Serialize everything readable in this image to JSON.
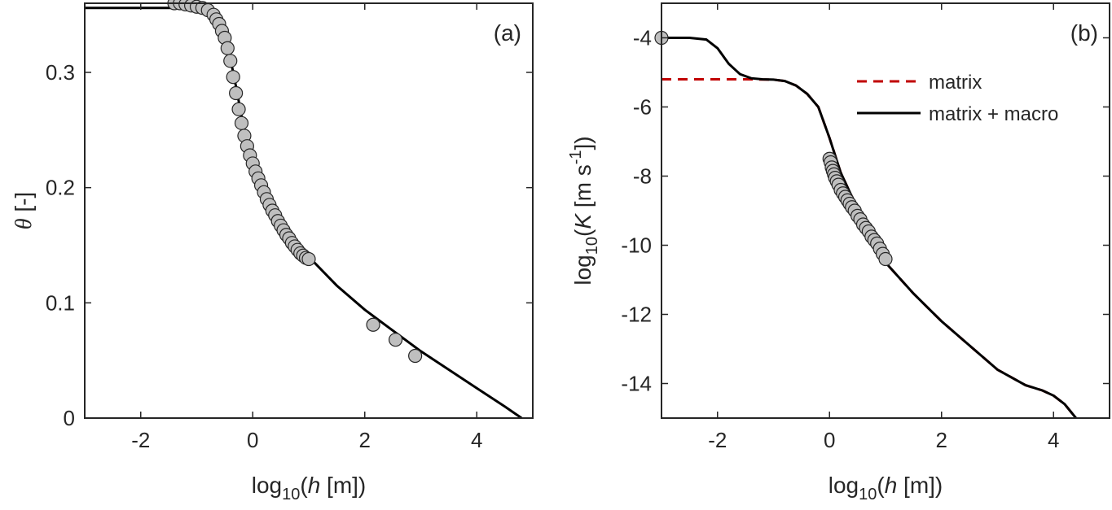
{
  "chart_data": [
    {
      "type": "scatter",
      "panel_label": "(a)",
      "xlabel": {
        "pre": "log",
        "sub": "10",
        "open": "(",
        "var": "h",
        "unit": " [m])"
      },
      "ylabel": {
        "var": "θ",
        "unit": " [-]"
      },
      "xlim": [
        -3,
        5
      ],
      "ylim": [
        0,
        0.36
      ],
      "xticks": [
        -2,
        0,
        2,
        4
      ],
      "xtick_labels": [
        "-2",
        "0",
        "2",
        "4"
      ],
      "yticks": [
        0,
        0.1,
        0.2,
        0.3
      ],
      "ytick_labels": [
        "0",
        "0.1",
        "0.2",
        "0.3"
      ],
      "grid": false,
      "series": [
        {
          "kind": "line",
          "x": [
            -3.0,
            -1.4,
            -1.0,
            -0.8,
            -0.6,
            -0.5,
            -0.4,
            -0.3,
            -0.2,
            -0.1,
            0.0,
            0.1,
            0.2,
            0.4,
            0.6,
            0.8,
            1.0,
            1.5,
            2.0,
            2.5,
            3.0,
            3.5,
            4.0,
            4.5,
            4.8
          ],
          "y": [
            0.356,
            0.356,
            0.354,
            0.35,
            0.34,
            0.33,
            0.312,
            0.288,
            0.262,
            0.24,
            0.224,
            0.21,
            0.198,
            0.18,
            0.165,
            0.152,
            0.14,
            0.115,
            0.094,
            0.076,
            0.058,
            0.042,
            0.026,
            0.01,
            0.0
          ],
          "color": "#000000"
        },
        {
          "kind": "points",
          "x": [
            -1.4,
            -1.3,
            -1.2,
            -1.1,
            -1.0,
            -0.9,
            -0.8,
            -0.7,
            -0.65,
            -0.6,
            -0.55,
            -0.5,
            -0.45,
            -0.4,
            -0.35,
            -0.3,
            -0.25,
            -0.2,
            -0.15,
            -0.1,
            -0.05,
            0.0,
            0.05,
            0.1,
            0.15,
            0.2,
            0.25,
            0.3,
            0.35,
            0.4,
            0.45,
            0.5,
            0.55,
            0.6,
            0.65,
            0.7,
            0.75,
            0.8,
            0.85,
            0.9,
            0.95,
            1.0,
            2.15,
            2.55,
            2.9
          ],
          "y": [
            0.36,
            0.36,
            0.359,
            0.358,
            0.357,
            0.356,
            0.354,
            0.35,
            0.346,
            0.342,
            0.336,
            0.33,
            0.321,
            0.31,
            0.296,
            0.282,
            0.268,
            0.256,
            0.245,
            0.236,
            0.228,
            0.221,
            0.214,
            0.208,
            0.202,
            0.196,
            0.19,
            0.185,
            0.18,
            0.176,
            0.171,
            0.167,
            0.163,
            0.159,
            0.156,
            0.152,
            0.149,
            0.146,
            0.143,
            0.141,
            0.139,
            0.138,
            0.081,
            0.068,
            0.054
          ],
          "color": "#bfbfbf"
        }
      ]
    },
    {
      "type": "line",
      "panel_label": "(b)",
      "xlabel": {
        "pre": "log",
        "sub": "10",
        "open": "(",
        "var": "h",
        "unit": " [m])"
      },
      "ylabel": {
        "pre": "log",
        "sub": "10",
        "open": "(",
        "var": "K",
        "unit": " [m s",
        "sup": "-1",
        "close": "])"
      },
      "xlim": [
        -3,
        5
      ],
      "ylim": [
        -15,
        -3
      ],
      "xticks": [
        -2,
        0,
        2,
        4
      ],
      "xtick_labels": [
        "-2",
        "0",
        "2",
        "4"
      ],
      "yticks": [
        -14,
        -12,
        -10,
        -8,
        -6,
        -4
      ],
      "ytick_labels": [
        "-14",
        "-12",
        "-10",
        "-8",
        "-6",
        "-4"
      ],
      "grid": false,
      "legend": {
        "placement": "top-right"
      },
      "series": [
        {
          "name": "matrix",
          "kind": "line",
          "style": "dashed",
          "x": [
            -3.0,
            -2.0,
            -1.5,
            -1.0,
            -0.8,
            -0.6,
            -0.4,
            -0.2,
            0.0,
            0.2,
            0.4,
            0.6,
            0.8,
            1.0,
            1.5,
            2.0,
            2.5,
            3.0,
            3.5,
            3.8,
            4.0,
            4.2,
            4.4
          ],
          "y": [
            -5.2,
            -5.2,
            -5.2,
            -5.21,
            -5.25,
            -5.38,
            -5.62,
            -6.0,
            -6.9,
            -7.9,
            -8.6,
            -9.3,
            -9.9,
            -10.5,
            -11.4,
            -12.2,
            -12.9,
            -13.6,
            -14.05,
            -14.2,
            -14.35,
            -14.6,
            -15.0
          ],
          "color": "#c00000"
        },
        {
          "name": "matrix + macro",
          "kind": "line",
          "style": "solid",
          "x": [
            -3.0,
            -2.5,
            -2.2,
            -2.0,
            -1.8,
            -1.6,
            -1.4,
            -1.2,
            -1.0,
            -0.8,
            -0.6,
            -0.4,
            -0.2,
            0.0,
            0.2,
            0.4,
            0.6,
            0.8,
            1.0,
            1.5,
            2.0,
            2.5,
            3.0,
            3.5,
            3.8,
            4.0,
            4.2,
            4.4
          ],
          "y": [
            -4.0,
            -4.0,
            -4.05,
            -4.3,
            -4.75,
            -5.05,
            -5.17,
            -5.2,
            -5.21,
            -5.25,
            -5.38,
            -5.62,
            -6.0,
            -6.9,
            -7.9,
            -8.6,
            -9.3,
            -9.9,
            -10.5,
            -11.4,
            -12.2,
            -12.9,
            -13.6,
            -14.05,
            -14.2,
            -14.35,
            -14.6,
            -15.0
          ],
          "color": "#000000"
        },
        {
          "kind": "points",
          "x": [
            -3.0,
            0.0,
            0.02,
            0.04,
            0.06,
            0.08,
            0.1,
            0.13,
            0.16,
            0.2,
            0.24,
            0.28,
            0.32,
            0.36,
            0.4,
            0.45,
            0.5,
            0.55,
            0.6,
            0.65,
            0.7,
            0.75,
            0.8,
            0.85,
            0.9,
            0.95,
            1.0
          ],
          "y": [
            -4.0,
            -7.5,
            -7.6,
            -7.75,
            -7.85,
            -7.95,
            -8.05,
            -8.15,
            -8.25,
            -8.4,
            -8.5,
            -8.6,
            -8.7,
            -8.8,
            -8.9,
            -9.0,
            -9.15,
            -9.25,
            -9.4,
            -9.5,
            -9.6,
            -9.75,
            -9.85,
            -9.95,
            -10.1,
            -10.25,
            -10.4
          ],
          "color": "#bfbfbf"
        }
      ]
    }
  ]
}
